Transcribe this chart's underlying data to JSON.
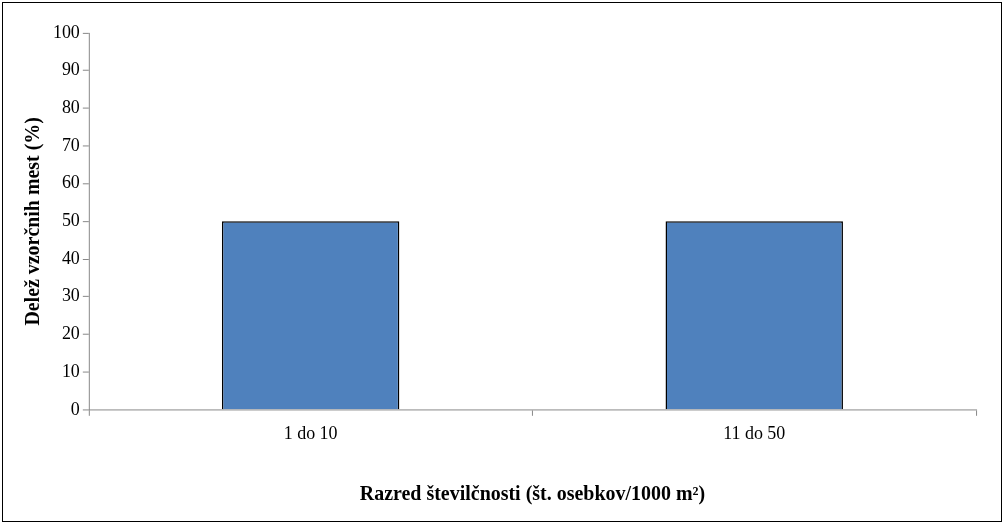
{
  "chart_data": {
    "type": "bar",
    "xlabel": "Razred številčnosti (št. osebkov/1000 m²)",
    "ylabel": "Delež vzorčnih mest (%)",
    "categories": [
      "1 do 10",
      "11 do 50"
    ],
    "values": [
      50,
      50
    ],
    "color": "#4f81bd",
    "ylim": [
      0,
      100
    ],
    "yticks": [
      0,
      10,
      20,
      30,
      40,
      50,
      60,
      70,
      80,
      90,
      100
    ],
    "grid": false,
    "legend": false
  }
}
